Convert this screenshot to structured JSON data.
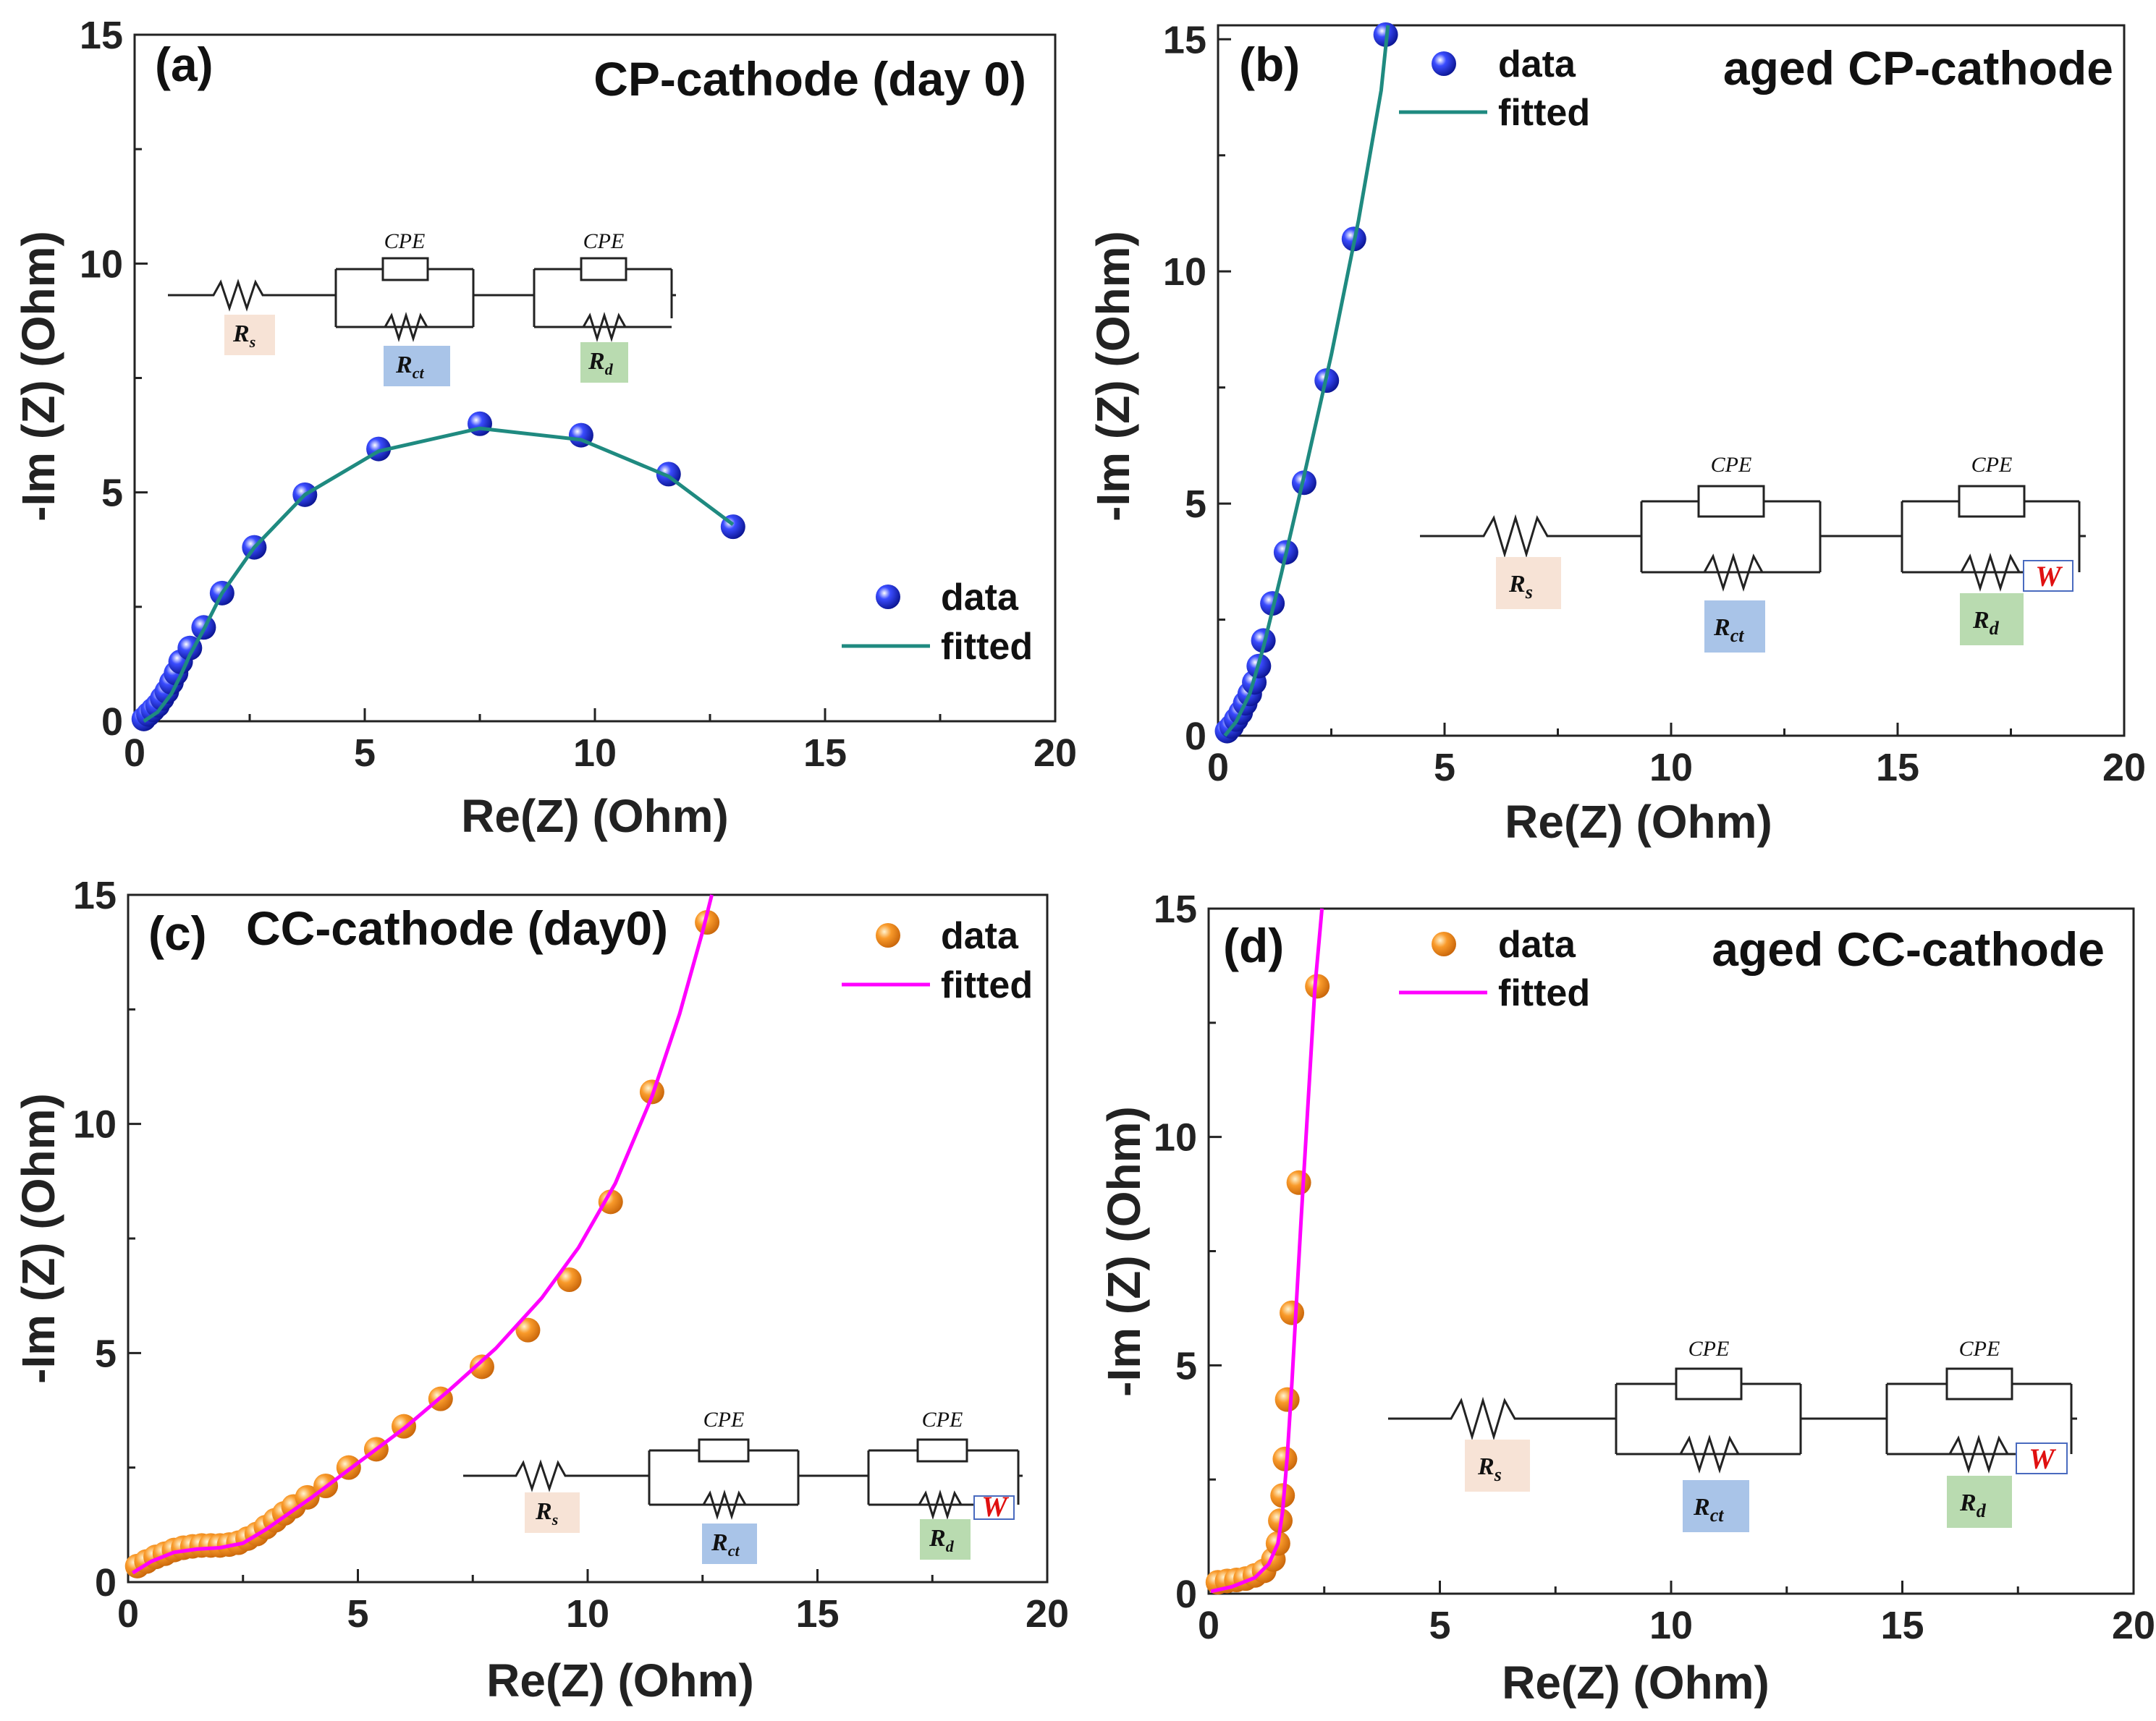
{
  "colors": {
    "blue_marker": "#1f2ef0",
    "orange_marker": "#f7931e",
    "teal_line": "#1f8a80",
    "magenta_line": "#ff00ff",
    "rs_box": "#f7e3d6",
    "rct_box": "#a9c4e8",
    "rd_box": "#b9dbb0",
    "w_text": "#e01010"
  },
  "circuit": {
    "cpe_label": "CPE",
    "rs_label": "R",
    "rs_sub": "s",
    "rct_label": "R",
    "rct_sub": "ct",
    "rd_label": "R",
    "rd_sub": "d",
    "w_label": "W"
  },
  "chart_data": [
    {
      "type": "scatter",
      "panel": "(a)",
      "title": "CP-cathode (day 0)",
      "xlabel": "Re(Z) (Ohm)",
      "ylabel": "-Im (Z) (Ohm)",
      "xlim": [
        0,
        20
      ],
      "ylim": [
        0,
        15
      ],
      "xticks": [
        0,
        5,
        10,
        15,
        20
      ],
      "yticks": [
        0,
        5,
        10,
        15
      ],
      "legend": [
        "data",
        "fitted"
      ],
      "legend_position": "middle-right",
      "marker_color": "#1f2ef0",
      "line_color": "#1f8a80",
      "circuit": "Rs-(CPE||Rct)-(CPE||Rd)",
      "data": {
        "x": [
          0.2,
          0.3,
          0.4,
          0.5,
          0.6,
          0.7,
          0.8,
          0.9,
          1.0,
          1.2,
          1.5,
          1.9,
          2.6,
          3.7,
          5.3,
          7.5,
          9.7,
          11.6,
          13.0
        ],
        "y": [
          0.05,
          0.15,
          0.25,
          0.35,
          0.5,
          0.65,
          0.85,
          1.05,
          1.3,
          1.6,
          2.05,
          2.8,
          3.8,
          4.95,
          5.95,
          6.5,
          6.25,
          5.4,
          4.25
        ]
      },
      "fitted": {
        "x": [
          0.2,
          0.5,
          0.8,
          1.0,
          1.2,
          1.5,
          1.9,
          2.6,
          3.7,
          5.3,
          7.5,
          9.7,
          11.6,
          13.0
        ],
        "y": [
          0.0,
          0.2,
          0.6,
          1.0,
          1.45,
          2.0,
          2.8,
          3.8,
          4.95,
          5.9,
          6.4,
          6.15,
          5.35,
          4.3
        ]
      }
    },
    {
      "type": "scatter",
      "panel": "(b)",
      "title": "aged CP-cathode",
      "xlabel": "Re(Z) (Ohm)",
      "ylabel": "-Im (Z) (Ohm)",
      "xlim": [
        0,
        20
      ],
      "ylim": [
        0,
        15.3
      ],
      "xticks": [
        0,
        5,
        10,
        15,
        20
      ],
      "yticks": [
        0,
        5,
        10,
        15
      ],
      "legend": [
        "data",
        "fitted"
      ],
      "legend_position": "top-left",
      "marker_color": "#1f2ef0",
      "line_color": "#1f8a80",
      "circuit": "Rs-(CPE||Rct)-(CPE||Rd-W)",
      "data": {
        "x": [
          0.2,
          0.3,
          0.4,
          0.5,
          0.6,
          0.7,
          0.8,
          0.9,
          1.0,
          1.2,
          1.5,
          1.9,
          2.4,
          3.0,
          3.7
        ],
        "y": [
          0.1,
          0.2,
          0.35,
          0.5,
          0.7,
          0.9,
          1.15,
          1.5,
          2.05,
          2.85,
          3.95,
          5.45,
          7.65,
          10.7,
          15.1
        ]
      },
      "fitted": {
        "x": [
          0.15,
          0.4,
          0.7,
          1.0,
          1.4,
          1.9,
          2.5,
          3.1,
          3.6,
          3.75
        ],
        "y": [
          0.0,
          0.3,
          0.9,
          1.9,
          3.5,
          5.6,
          8.2,
          11.1,
          13.9,
          15.3
        ]
      }
    },
    {
      "type": "scatter",
      "panel": "(c)",
      "title": "CC-cathode (day0)",
      "xlabel": "Re(Z) (Ohm)",
      "ylabel": "-Im (Z) (Ohm)",
      "xlim": [
        0,
        20
      ],
      "ylim": [
        0,
        15
      ],
      "xticks": [
        0,
        5,
        10,
        15,
        20
      ],
      "yticks": [
        0,
        5,
        10,
        15
      ],
      "legend": [
        "data",
        "fitted"
      ],
      "legend_position": "top-right",
      "marker_color": "#f7931e",
      "line_color": "#ff00ff",
      "circuit": "Rs-(CPE||Rct)-(CPE||Rd-W)",
      "data": {
        "x": [
          0.2,
          0.4,
          0.6,
          0.8,
          1.0,
          1.2,
          1.4,
          1.6,
          1.8,
          2.0,
          2.2,
          2.4,
          2.6,
          2.8,
          3.0,
          3.2,
          3.4,
          3.6,
          3.9,
          4.3,
          4.8,
          5.4,
          6.0,
          6.8,
          7.7,
          8.7,
          9.6,
          10.5,
          11.4,
          12.6
        ],
        "y": [
          0.35,
          0.45,
          0.55,
          0.62,
          0.7,
          0.75,
          0.78,
          0.8,
          0.8,
          0.8,
          0.82,
          0.86,
          0.95,
          1.05,
          1.2,
          1.35,
          1.5,
          1.65,
          1.85,
          2.1,
          2.5,
          2.9,
          3.4,
          4.0,
          4.7,
          5.5,
          6.6,
          8.3,
          10.7,
          14.4
        ]
      },
      "fitted": {
        "x": [
          0.1,
          0.5,
          1.0,
          1.5,
          2.0,
          2.5,
          3.0,
          4.0,
          5.0,
          6.0,
          7.0,
          8.0,
          9.0,
          9.8,
          10.6,
          11.4,
          12.0,
          12.5,
          12.7
        ],
        "y": [
          0.2,
          0.45,
          0.65,
          0.72,
          0.75,
          0.85,
          1.15,
          1.85,
          2.6,
          3.35,
          4.2,
          5.1,
          6.2,
          7.3,
          8.7,
          10.6,
          12.4,
          14.2,
          15.0
        ]
      }
    },
    {
      "type": "scatter",
      "panel": "(d)",
      "title": "aged CC-cathode",
      "xlabel": "Re(Z) (Ohm)",
      "ylabel": "-Im (Z) (Ohm)",
      "xlim": [
        0,
        20
      ],
      "ylim": [
        0,
        15
      ],
      "xticks": [
        0,
        5,
        10,
        15,
        20
      ],
      "yticks": [
        0,
        5,
        10,
        15
      ],
      "legend": [
        "data",
        "fitted"
      ],
      "legend_position": "top-left",
      "marker_color": "#f7931e",
      "line_color": "#ff00ff",
      "circuit": "Rs-(CPE||Rct)-(CPE||Rd-W)",
      "data": {
        "x": [
          0.2,
          0.4,
          0.6,
          0.8,
          1.0,
          1.2,
          1.4,
          1.5,
          1.55,
          1.6,
          1.65,
          1.7,
          1.8,
          1.95,
          2.35
        ],
        "y": [
          0.25,
          0.28,
          0.3,
          0.33,
          0.4,
          0.5,
          0.75,
          1.1,
          1.6,
          2.15,
          2.95,
          4.25,
          6.15,
          9.0,
          13.3
        ]
      },
      "fitted": {
        "x": [
          0.05,
          0.5,
          1.0,
          1.3,
          1.5,
          1.6,
          1.7,
          1.8,
          1.9,
          2.0,
          2.1,
          2.2,
          2.3,
          2.45
        ],
        "y": [
          0.05,
          0.15,
          0.35,
          0.65,
          1.1,
          1.8,
          3.0,
          4.6,
          6.4,
          8.2,
          9.9,
          11.6,
          13.3,
          15.0
        ]
      }
    }
  ]
}
